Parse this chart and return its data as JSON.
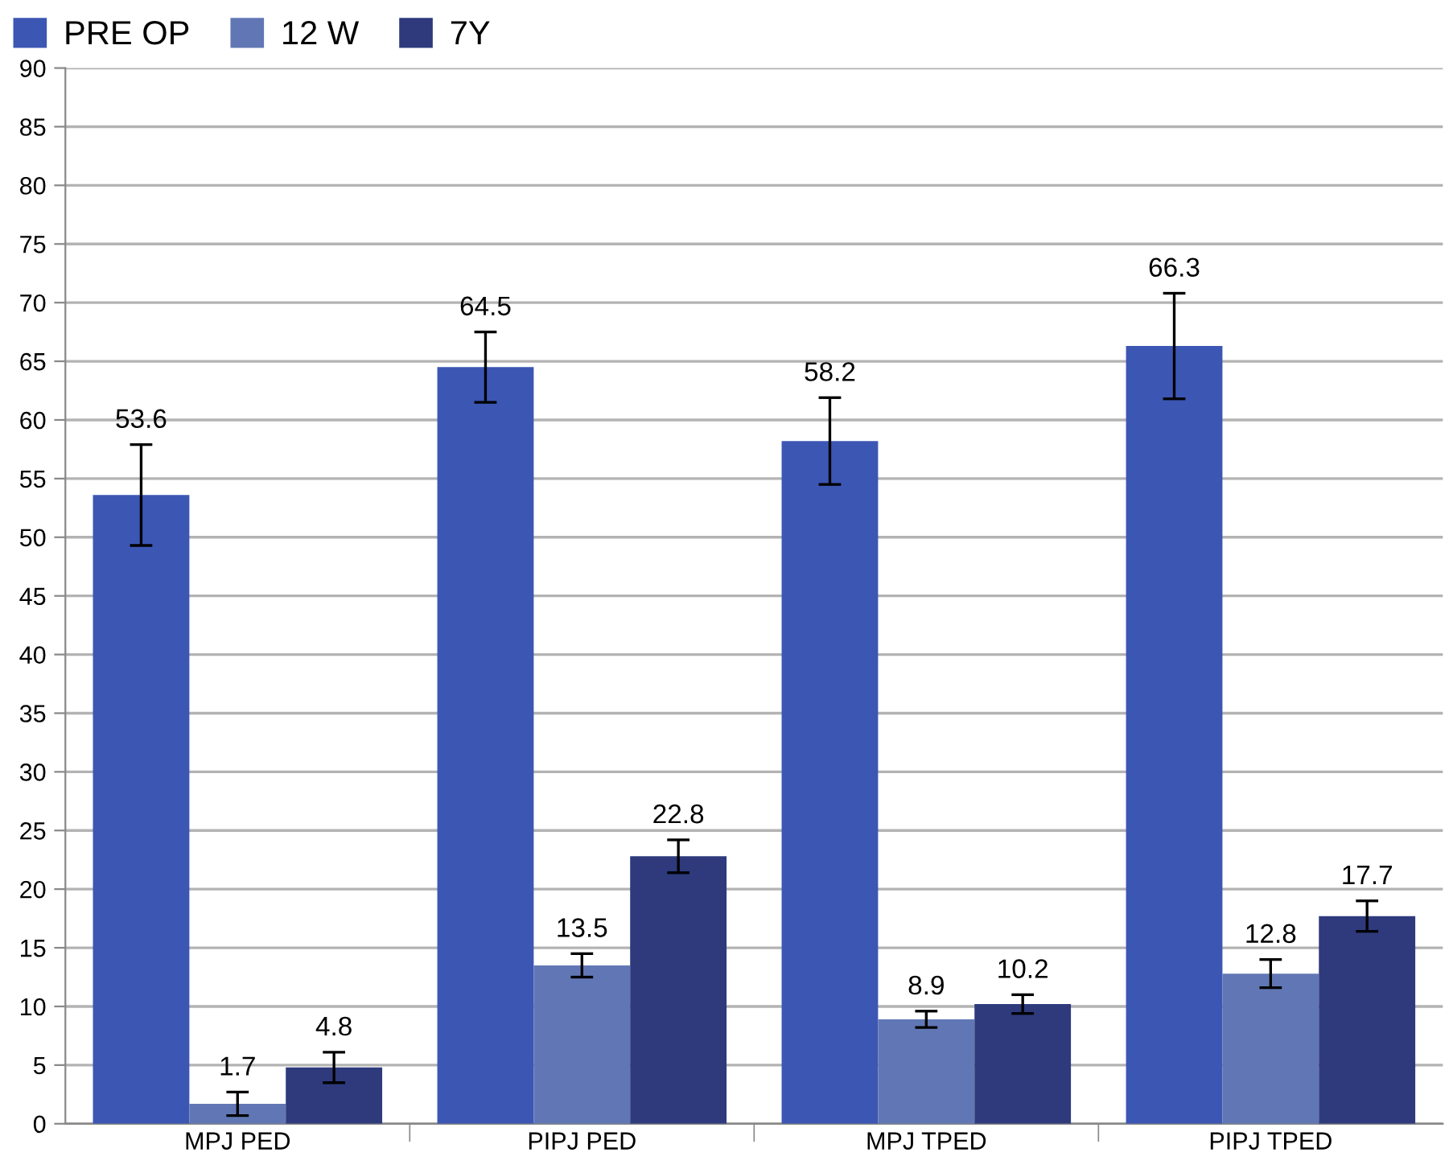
{
  "chart_data": {
    "type": "bar",
    "categories": [
      "MPJ PED",
      "PIPJ PED",
      "MPJ TPED",
      "PIPJ TPED"
    ],
    "series": [
      {
        "name": "PRE OP",
        "color": "#3c56b4",
        "values": [
          53.6,
          64.5,
          58.2,
          66.3
        ],
        "errors": [
          4.3,
          3.0,
          3.7,
          4.5
        ]
      },
      {
        "name": "12 W",
        "color": "#6177b5",
        "values": [
          1.7,
          13.5,
          8.9,
          12.8
        ],
        "errors": [
          1.0,
          1.0,
          0.7,
          1.2
        ]
      },
      {
        "name": "7Y",
        "color": "#2e3a7c",
        "values": [
          4.8,
          22.8,
          10.2,
          17.7
        ],
        "errors": [
          1.3,
          1.4,
          0.8,
          1.3
        ]
      }
    ],
    "ylim": [
      0,
      90
    ],
    "yticks": [
      0,
      5,
      10,
      15,
      20,
      25,
      30,
      35,
      40,
      45,
      50,
      55,
      60,
      65,
      70,
      75,
      80,
      85,
      90
    ],
    "grid": "y",
    "legend": "top left",
    "data_labels": true
  }
}
